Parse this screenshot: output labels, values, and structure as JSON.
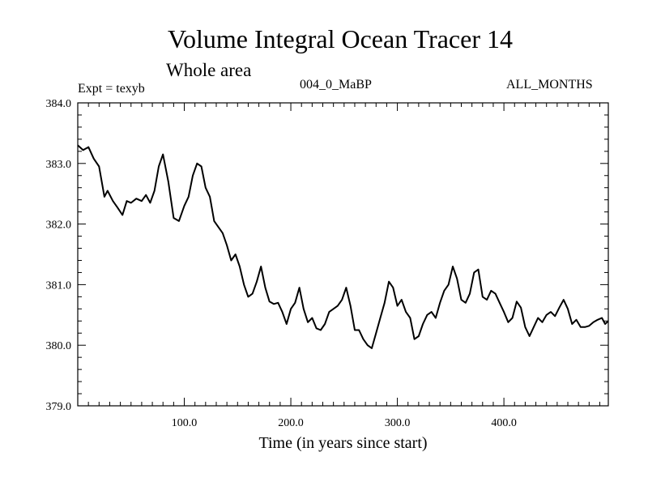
{
  "header": {
    "title": "Volume Integral Ocean Tracer 14",
    "subtitle": "Whole area",
    "expt": "Expt = texyb",
    "period": "004_0_MaBP",
    "months": "ALL_MONTHS"
  },
  "chart_data": {
    "type": "line",
    "title": "Volume Integral Ocean Tracer 14",
    "subtitle": "Whole area",
    "xlabel": "Time (in years since start)",
    "ylabel": "",
    "xlim": [
      0,
      498
    ],
    "ylim": [
      379.0,
      384.0
    ],
    "x_ticks": [
      100,
      200,
      300,
      400
    ],
    "x_tick_labels": [
      "100.0",
      "200.0",
      "300.0",
      "400.0"
    ],
    "y_ticks": [
      379,
      380,
      381,
      382,
      383,
      384
    ],
    "y_tick_labels": [
      "379.0",
      "380.0",
      "381.0",
      "382.0",
      "383.0",
      "384.0"
    ],
    "grid": false,
    "series": [
      {
        "color": "#000000",
        "x": [
          0,
          5,
          10,
          15,
          20,
          25,
          28,
          33,
          37,
          42,
          46,
          50,
          55,
          60,
          64,
          68,
          72,
          76,
          80,
          85,
          90,
          95,
          100,
          104,
          108,
          112,
          116,
          120,
          124,
          128,
          132,
          136,
          140,
          144,
          148,
          152,
          156,
          160,
          164,
          168,
          172,
          176,
          180,
          184,
          188,
          192,
          196,
          200,
          204,
          208,
          212,
          216,
          220,
          224,
          228,
          232,
          236,
          240,
          244,
          248,
          252,
          256,
          260,
          264,
          268,
          272,
          276,
          280,
          284,
          288,
          292,
          296,
          300,
          304,
          308,
          312,
          316,
          320,
          324,
          328,
          332,
          336,
          340,
          344,
          348,
          352,
          356,
          360,
          364,
          368,
          372,
          376,
          380,
          384,
          388,
          392,
          396,
          400,
          404,
          408,
          412,
          416,
          420,
          424,
          428,
          432,
          436,
          440,
          444,
          448,
          452,
          456,
          460,
          464,
          468,
          472,
          476,
          480,
          484,
          488,
          492,
          495,
          498
        ],
        "y": [
          383.3,
          383.22,
          383.27,
          383.08,
          382.95,
          382.45,
          382.55,
          382.38,
          382.28,
          382.15,
          382.38,
          382.35,
          382.42,
          382.38,
          382.48,
          382.35,
          382.55,
          382.95,
          383.15,
          382.7,
          382.1,
          382.05,
          382.3,
          382.45,
          382.8,
          383.0,
          382.95,
          382.6,
          382.45,
          382.05,
          381.95,
          381.85,
          381.65,
          381.4,
          381.5,
          381.3,
          381.0,
          380.8,
          380.85,
          381.05,
          381.3,
          380.95,
          380.72,
          380.68,
          380.7,
          380.55,
          380.35,
          380.6,
          380.7,
          380.95,
          380.6,
          380.38,
          380.45,
          380.28,
          380.25,
          380.35,
          380.55,
          380.6,
          380.65,
          380.75,
          380.95,
          380.65,
          380.25,
          380.25,
          380.1,
          380.0,
          379.95,
          380.2,
          380.45,
          380.7,
          381.05,
          380.95,
          380.65,
          380.75,
          380.55,
          380.45,
          380.1,
          380.15,
          380.35,
          380.5,
          380.55,
          380.45,
          380.7,
          380.9,
          381.0,
          381.3,
          381.1,
          380.75,
          380.7,
          380.85,
          381.2,
          381.25,
          380.8,
          380.75,
          380.9,
          380.85,
          380.7,
          380.55,
          380.38,
          380.45,
          380.72,
          380.62,
          380.3,
          380.15,
          380.3,
          380.45,
          380.38,
          380.5,
          380.55,
          380.48,
          380.62,
          380.75,
          380.6,
          380.35,
          380.42,
          380.3,
          380.3,
          380.32,
          380.38,
          380.42,
          380.45,
          380.35,
          380.4
        ]
      }
    ]
  }
}
